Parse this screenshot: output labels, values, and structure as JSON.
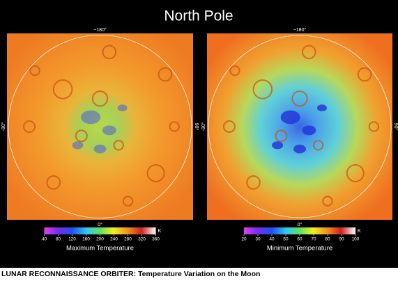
{
  "title": "North Pole",
  "caption": "LUNAR RECONNAISSANCE ORBITER: Temperature Variation on the Moon",
  "maps": [
    {
      "name": "Maximum Temperature",
      "unit": "K",
      "ticks": [
        40,
        80,
        120,
        160,
        200,
        240,
        280,
        320,
        360
      ],
      "labels": {
        "top": "~180°",
        "left": "-90°",
        "right": "90°",
        "bottom": "0°"
      }
    },
    {
      "name": "Minimum Temperature",
      "unit": "K",
      "ticks": [
        20,
        30,
        40,
        50,
        60,
        70,
        80,
        90,
        100
      ],
      "labels": {
        "top": "~180°",
        "left": "-90°",
        "right": "90°",
        "bottom": "0°"
      }
    }
  ]
}
